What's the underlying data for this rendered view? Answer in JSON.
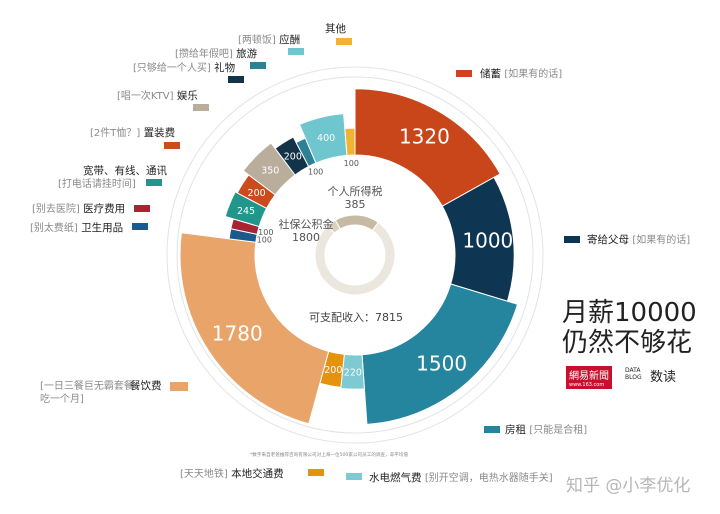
{
  "title_line1": "月薪10000",
  "title_line2": "仍然不够花",
  "brand": {
    "netease": "網易新聞",
    "netease_url": "www.163.com",
    "databox": "DATA BLOG",
    "shudu": "数读"
  },
  "footnote": "*数字来自老爸推荐咨询有限公司对上海一位500家公司员工的调查，非平均值",
  "watermark": "知乎 @小李优化",
  "center": {
    "tax_label": "个人所得税",
    "tax_value": "385",
    "social_label": "社保公积金",
    "social_value": "1800",
    "disposable_label": "可支配收入：7815"
  },
  "chart_data": {
    "type": "donut",
    "inner_ring": [
      {
        "name": "个人所得税",
        "value": 385,
        "color": "#d9d0bf"
      },
      {
        "name": "社保公积金",
        "value": 1800,
        "color": "#c6baa3"
      },
      {
        "name": "可支配收入",
        "value": 7815,
        "color": "#ece7de"
      }
    ],
    "outer_ring": [
      {
        "name": "储蓄",
        "note": "[如果有的话]",
        "value": 1320,
        "color": "#c9461b"
      },
      {
        "name": "寄给父母",
        "note": "[如果有的话]",
        "value": 1000,
        "color": "#0e3551"
      },
      {
        "name": "房租",
        "note": "[只能是合租]",
        "value": 1500,
        "color": "#25859e"
      },
      {
        "name": "水电燃气费",
        "note": "[别开空调，电热水器随手关]",
        "value": 220,
        "color": "#7dcad3"
      },
      {
        "name": "本地交通费",
        "note": "[天天地铁]",
        "value": 200,
        "color": "#e5930f"
      },
      {
        "name": "餐饮费",
        "note": "[一日三餐巨无霸套餐吃一个月]",
        "value": 1780,
        "color": "#e9a46a"
      },
      {
        "name": "卫生用品",
        "note": "[别太费纸]",
        "value": 100,
        "color": "#1c5a8c"
      },
      {
        "name": "医疗费用",
        "note": "[别去医院]",
        "value": 100,
        "color": "#a62530"
      },
      {
        "name": "宽带、有线、通讯",
        "note": "[打电话请挂时间]",
        "value": 245,
        "color": "#21968a"
      },
      {
        "name": "置装费",
        "note": "[2件T恤？]",
        "value": 200,
        "color": "#cc4b1c"
      },
      {
        "name": "娱乐",
        "note": "[唱一次KTV]",
        "value": 350,
        "color": "#b9ad9c"
      },
      {
        "name": "礼物",
        "note": "[只够给一个人买]",
        "value": 200,
        "color": "#133349"
      },
      {
        "name": "旅游",
        "note": "[攒给年假吧]",
        "value": 100,
        "color": "#2d8196"
      },
      {
        "name": "应酬",
        "note": "[两顿饭]",
        "value": 400,
        "color": "#6fc6cf"
      },
      {
        "name": "其他",
        "note": "",
        "value": 100,
        "color": "#f0b432"
      }
    ]
  }
}
